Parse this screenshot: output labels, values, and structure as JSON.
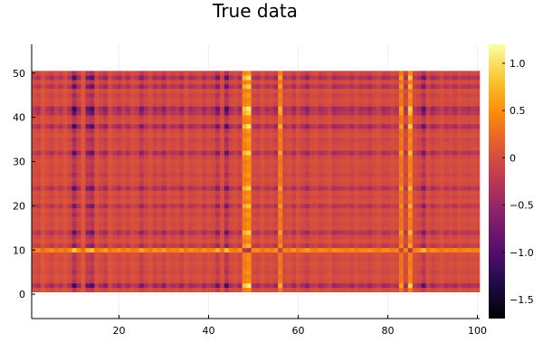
{
  "chart_data": {
    "type": "heatmap",
    "title": "True data",
    "xlabel": "",
    "ylabel": "",
    "xlim": [
      0.5,
      100.5
    ],
    "ylim": [
      -5.5,
      56.5
    ],
    "data_x_range": [
      1,
      100
    ],
    "data_y_range": [
      1,
      50
    ],
    "x_ticks": [
      20,
      40,
      60,
      80,
      100
    ],
    "y_ticks": [
      0,
      10,
      20,
      30,
      40,
      50
    ],
    "grid": true,
    "colorbar": {
      "colormap": "inferno",
      "clim": [
        -1.7,
        1.2
      ],
      "ticks": [
        -1.5,
        -1.0,
        -0.5,
        0,
        0.5,
        1.0
      ],
      "tick_labels": [
        "−1.5",
        "−1.0",
        "−0.5",
        "0",
        "0.5",
        "1.0"
      ],
      "position": "right"
    },
    "structure_note": "rank-one pattern: z[row][col] = u[row] * v[col] + c",
    "column_factors_v": [
      0.35,
      0.5,
      0.2,
      0.4,
      0.55,
      0.3,
      0.45,
      0.25,
      0.5,
      1.2,
      0.6,
      0.15,
      0.9,
      1.1,
      0.3,
      0.5,
      0.7,
      0.25,
      0.45,
      0.6,
      0.35,
      0.55,
      0.3,
      0.4,
      0.8,
      0.5,
      0.3,
      0.6,
      0.45,
      0.7,
      0.35,
      0.5,
      0.4,
      0.65,
      0.3,
      0.55,
      0.45,
      0.35,
      0.6,
      0.4,
      0.5,
      0.9,
      0.3,
      1.1,
      0.5,
      0.35,
      0.6,
      -0.6,
      -0.85,
      0.45,
      0.55,
      0.3,
      0.5,
      0.4,
      0.6,
      -0.5,
      0.45,
      0.35,
      0.6,
      0.3,
      0.5,
      0.7,
      0.4,
      0.35,
      0.55,
      0.45,
      0.3,
      0.6,
      0.5,
      0.45,
      0.4,
      0.55,
      0.35,
      0.5,
      0.45,
      0.6,
      0.4,
      0.3,
      0.55,
      0.5,
      0.35,
      0.45,
      -0.4,
      0.5,
      -0.7,
      0.4,
      0.55,
      1.0,
      0.35,
      0.6,
      0.45,
      0.3,
      0.5,
      0.4,
      0.55,
      0.35,
      0.45,
      0.5,
      0.4,
      0.45
    ],
    "row_factors_u": [
      -0.35,
      -1.1,
      -0.4,
      -0.3,
      -0.45,
      -0.35,
      -0.3,
      -0.4,
      -0.35,
      0.6,
      -0.7,
      -0.3,
      -0.45,
      -0.9,
      -0.35,
      -0.4,
      -0.3,
      -0.5,
      -0.35,
      -0.8,
      -0.3,
      -0.45,
      -0.35,
      -0.9,
      -0.4,
      -0.3,
      -0.5,
      -0.35,
      -0.4,
      -0.3,
      -0.45,
      -0.95,
      -0.35,
      -0.4,
      -0.5,
      -0.3,
      -0.45,
      -1.05,
      -0.35,
      -0.4,
      -0.9,
      -1.1,
      -0.4,
      -0.35,
      -0.5,
      -0.3,
      -0.9,
      -0.4,
      -1.0,
      -0.45
    ],
    "offset_c": 0.15
  }
}
